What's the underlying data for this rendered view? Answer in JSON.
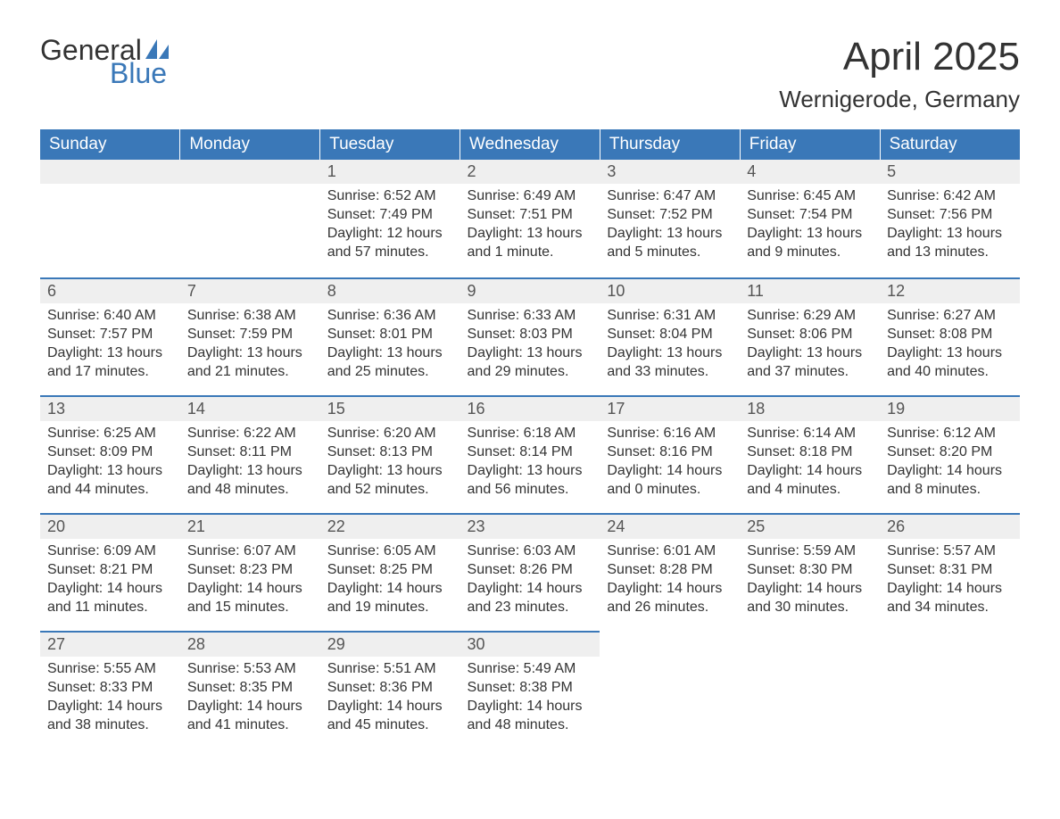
{
  "logo": {
    "word1": "General",
    "word2": "Blue"
  },
  "title": "April 2025",
  "location": "Wernigerode, Germany",
  "colors": {
    "header_bg": "#3a78b8",
    "header_text": "#ffffff",
    "daynum_bg": "#efefef",
    "row_border": "#3a78b8",
    "body_text": "#333333",
    "logo_blue": "#3a78b8"
  },
  "daysOfWeek": [
    "Sunday",
    "Monday",
    "Tuesday",
    "Wednesday",
    "Thursday",
    "Friday",
    "Saturday"
  ],
  "labels": {
    "sunrise": "Sunrise:",
    "sunset": "Sunset:",
    "daylight": "Daylight:"
  },
  "weeks": [
    [
      null,
      null,
      {
        "n": "1",
        "sr": "6:52 AM",
        "ss": "7:49 PM",
        "dl": "12 hours and 57 minutes."
      },
      {
        "n": "2",
        "sr": "6:49 AM",
        "ss": "7:51 PM",
        "dl": "13 hours and 1 minute."
      },
      {
        "n": "3",
        "sr": "6:47 AM",
        "ss": "7:52 PM",
        "dl": "13 hours and 5 minutes."
      },
      {
        "n": "4",
        "sr": "6:45 AM",
        "ss": "7:54 PM",
        "dl": "13 hours and 9 minutes."
      },
      {
        "n": "5",
        "sr": "6:42 AM",
        "ss": "7:56 PM",
        "dl": "13 hours and 13 minutes."
      }
    ],
    [
      {
        "n": "6",
        "sr": "6:40 AM",
        "ss": "7:57 PM",
        "dl": "13 hours and 17 minutes."
      },
      {
        "n": "7",
        "sr": "6:38 AM",
        "ss": "7:59 PM",
        "dl": "13 hours and 21 minutes."
      },
      {
        "n": "8",
        "sr": "6:36 AM",
        "ss": "8:01 PM",
        "dl": "13 hours and 25 minutes."
      },
      {
        "n": "9",
        "sr": "6:33 AM",
        "ss": "8:03 PM",
        "dl": "13 hours and 29 minutes."
      },
      {
        "n": "10",
        "sr": "6:31 AM",
        "ss": "8:04 PM",
        "dl": "13 hours and 33 minutes."
      },
      {
        "n": "11",
        "sr": "6:29 AM",
        "ss": "8:06 PM",
        "dl": "13 hours and 37 minutes."
      },
      {
        "n": "12",
        "sr": "6:27 AM",
        "ss": "8:08 PM",
        "dl": "13 hours and 40 minutes."
      }
    ],
    [
      {
        "n": "13",
        "sr": "6:25 AM",
        "ss": "8:09 PM",
        "dl": "13 hours and 44 minutes."
      },
      {
        "n": "14",
        "sr": "6:22 AM",
        "ss": "8:11 PM",
        "dl": "13 hours and 48 minutes."
      },
      {
        "n": "15",
        "sr": "6:20 AM",
        "ss": "8:13 PM",
        "dl": "13 hours and 52 minutes."
      },
      {
        "n": "16",
        "sr": "6:18 AM",
        "ss": "8:14 PM",
        "dl": "13 hours and 56 minutes."
      },
      {
        "n": "17",
        "sr": "6:16 AM",
        "ss": "8:16 PM",
        "dl": "14 hours and 0 minutes."
      },
      {
        "n": "18",
        "sr": "6:14 AM",
        "ss": "8:18 PM",
        "dl": "14 hours and 4 minutes."
      },
      {
        "n": "19",
        "sr": "6:12 AM",
        "ss": "8:20 PM",
        "dl": "14 hours and 8 minutes."
      }
    ],
    [
      {
        "n": "20",
        "sr": "6:09 AM",
        "ss": "8:21 PM",
        "dl": "14 hours and 11 minutes."
      },
      {
        "n": "21",
        "sr": "6:07 AM",
        "ss": "8:23 PM",
        "dl": "14 hours and 15 minutes."
      },
      {
        "n": "22",
        "sr": "6:05 AM",
        "ss": "8:25 PM",
        "dl": "14 hours and 19 minutes."
      },
      {
        "n": "23",
        "sr": "6:03 AM",
        "ss": "8:26 PM",
        "dl": "14 hours and 23 minutes."
      },
      {
        "n": "24",
        "sr": "6:01 AM",
        "ss": "8:28 PM",
        "dl": "14 hours and 26 minutes."
      },
      {
        "n": "25",
        "sr": "5:59 AM",
        "ss": "8:30 PM",
        "dl": "14 hours and 30 minutes."
      },
      {
        "n": "26",
        "sr": "5:57 AM",
        "ss": "8:31 PM",
        "dl": "14 hours and 34 minutes."
      }
    ],
    [
      {
        "n": "27",
        "sr": "5:55 AM",
        "ss": "8:33 PM",
        "dl": "14 hours and 38 minutes."
      },
      {
        "n": "28",
        "sr": "5:53 AM",
        "ss": "8:35 PM",
        "dl": "14 hours and 41 minutes."
      },
      {
        "n": "29",
        "sr": "5:51 AM",
        "ss": "8:36 PM",
        "dl": "14 hours and 45 minutes."
      },
      {
        "n": "30",
        "sr": "5:49 AM",
        "ss": "8:38 PM",
        "dl": "14 hours and 48 minutes."
      },
      null,
      null,
      null
    ]
  ]
}
